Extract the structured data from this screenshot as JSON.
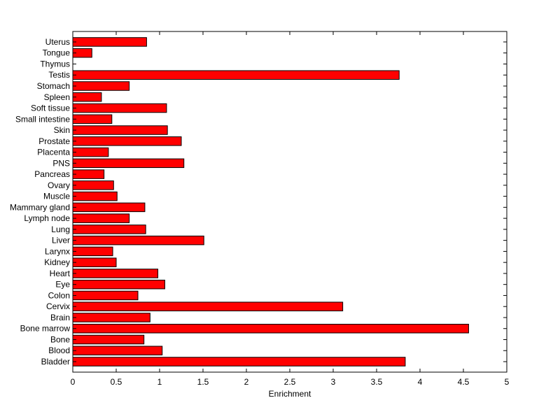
{
  "chart_data": {
    "type": "bar",
    "orientation": "horizontal",
    "title": "",
    "xlabel": "Enrichment",
    "ylabel": "",
    "xlim": [
      0,
      5
    ],
    "xticks": [
      "0",
      "0.5",
      "1",
      "1.5",
      "2",
      "2.5",
      "3",
      "3.5",
      "4",
      "4.5",
      "5"
    ],
    "grid": false,
    "bar_color": "#ff0000",
    "bar_edge_color": "#000000",
    "categories": [
      "Bladder",
      "Blood",
      "Bone",
      "Bone marrow",
      "Brain",
      "Cervix",
      "Colon",
      "Eye",
      "Heart",
      "Kidney",
      "Larynx",
      "Liver",
      "Lung",
      "Lymph node",
      "Mammary gland",
      "Muscle",
      "Ovary",
      "Pancreas",
      "PNS",
      "Placenta",
      "Prostate",
      "Skin",
      "Small intestine",
      "Soft tissue",
      "Spleen",
      "Stomach",
      "Testis",
      "Thymus",
      "Tongue",
      "Uterus"
    ],
    "values": [
      3.83,
      1.03,
      0.82,
      4.56,
      0.89,
      3.11,
      0.75,
      1.06,
      0.98,
      0.5,
      0.46,
      1.51,
      0.84,
      0.65,
      0.83,
      0.51,
      0.47,
      0.36,
      1.28,
      0.41,
      1.25,
      1.09,
      0.45,
      1.08,
      0.33,
      0.65,
      3.76,
      0.0,
      0.22,
      0.85
    ]
  }
}
